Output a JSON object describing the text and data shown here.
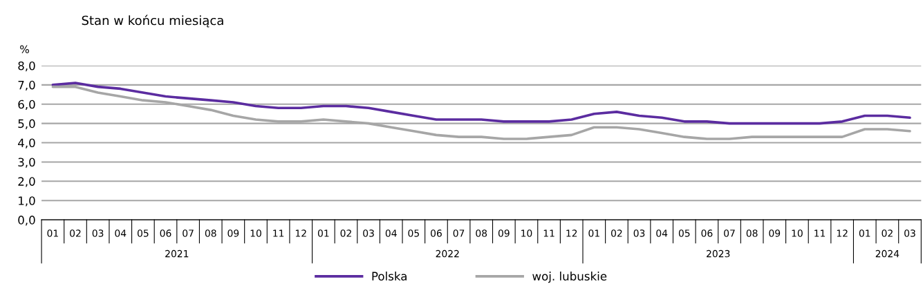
{
  "chart_data": {
    "type": "line",
    "title": "Stan w końcu miesiąca",
    "ylabel": "%",
    "categories": [
      "01",
      "02",
      "03",
      "04",
      "05",
      "06",
      "07",
      "08",
      "09",
      "10",
      "11",
      "12",
      "01",
      "02",
      "03",
      "04",
      "05",
      "06",
      "07",
      "08",
      "09",
      "10",
      "11",
      "12",
      "01",
      "02",
      "03",
      "04",
      "05",
      "06",
      "07",
      "08",
      "09",
      "10",
      "11",
      "12",
      "01",
      "02",
      "03"
    ],
    "annotations": [
      "2021",
      "2022",
      "2023",
      "2024"
    ],
    "series": [
      {
        "name": "Polska",
        "color": "#5b2ca0",
        "values": [
          7.0,
          7.1,
          6.9,
          6.8,
          6.6,
          6.4,
          6.3,
          6.2,
          6.1,
          5.9,
          5.8,
          5.8,
          5.9,
          5.9,
          5.8,
          5.6,
          5.4,
          5.2,
          5.2,
          5.2,
          5.1,
          5.1,
          5.1,
          5.2,
          5.5,
          5.6,
          5.4,
          5.3,
          5.1,
          5.1,
          5.0,
          5.0,
          5.0,
          5.0,
          5.0,
          5.1,
          5.4,
          5.4,
          5.3
        ]
      },
      {
        "name": "woj. lubuskie",
        "color": "#a6a6a6",
        "values": [
          6.9,
          6.9,
          6.6,
          6.4,
          6.2,
          6.1,
          5.9,
          5.7,
          5.4,
          5.2,
          5.1,
          5.1,
          5.2,
          5.1,
          5.0,
          4.8,
          4.6,
          4.4,
          4.3,
          4.3,
          4.2,
          4.2,
          4.3,
          4.4,
          4.8,
          4.8,
          4.7,
          4.5,
          4.3,
          4.2,
          4.2,
          4.3,
          4.3,
          4.3,
          4.3,
          4.3,
          4.7,
          4.7,
          4.6
        ]
      }
    ],
    "ylim": [
      0,
      8
    ],
    "yticks": [
      {
        "value": 0,
        "label": "0,0"
      },
      {
        "value": 1,
        "label": "1,0"
      },
      {
        "value": 2,
        "label": "2,0"
      },
      {
        "value": 3,
        "label": "3,0"
      },
      {
        "value": 4,
        "label": "4,0"
      },
      {
        "value": 5,
        "label": "5,0"
      },
      {
        "value": 6,
        "label": "6,0"
      },
      {
        "value": 7,
        "label": "7,0"
      },
      {
        "value": 8,
        "label": "8,0"
      }
    ],
    "grid": "y",
    "legend": "bottom",
    "marker": "none",
    "line_style": "solid"
  }
}
